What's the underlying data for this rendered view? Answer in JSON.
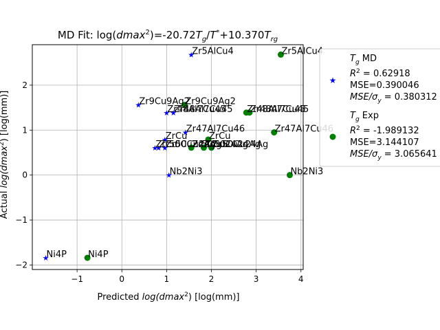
{
  "chart_data": {
    "type": "scatter",
    "title": "MD Fit: log(dmax²)=-20.72T g/T* +10.370T rg",
    "title_parts": {
      "prefix": "MD Fit: log(",
      "dmax": "dmax",
      "sq": "2",
      "mid1": ")=-20.72",
      "T1": "T",
      "g1": "g",
      "slash": "/",
      "T2": "T",
      "star": "*",
      "mid2": "+10.370",
      "T3": "T",
      "rg": "rg"
    },
    "xlabel_parts": {
      "prefix": "Predicted ",
      "italic": "log(dmax",
      "sq": "2",
      "suffix": ") [log(mm)]"
    },
    "ylabel_parts": {
      "prefix": "Actual ",
      "italic": "log(dmax",
      "sq": "2",
      "suffix": ") [log(mm)]"
    },
    "xlim": [
      -2.0,
      4.05
    ],
    "ylim": [
      -2.1,
      2.9
    ],
    "xticks": [
      -1,
      0,
      1,
      2,
      3,
      4
    ],
    "yticks": [
      -2,
      -1,
      0,
      1,
      2
    ],
    "xtick_labels": [
      "−1",
      "0",
      "1",
      "2",
      "3",
      "4"
    ],
    "ytick_labels": [
      "−2",
      "−1",
      "0",
      "1",
      "2"
    ],
    "grid": true,
    "legend_placement": "right, outside plot",
    "series": [
      {
        "name": "Tg MD",
        "legend_lines": {
          "label_T": "T",
          "label_g": "g",
          "label_rest": " MD",
          "r2_label": "R",
          "r2_sup": "2",
          "r2_value": " = 0.62918",
          "mse": "MSE=0.390046",
          "mse_sigma_label": "MSE/σ",
          "mse_sigma_sub": "y",
          "mse_sigma_value": " = 0.380312"
        },
        "color": "#0000ff",
        "marker": "star",
        "points": [
          {
            "label": "Zr5AlCu4",
            "x": 1.55,
            "y": 2.68
          },
          {
            "label": "Zr9Cu9Ag2",
            "x": 0.37,
            "y": 1.56
          },
          {
            "label": "Zr48Al7Cu45",
            "x": 1.0,
            "y": 1.39
          },
          {
            "label": "Zr48Al7Cu45",
            "x": 1.15,
            "y": 1.39
          },
          {
            "label": "Zr47Al7Cu46",
            "x": 1.42,
            "y": 0.95
          },
          {
            "label": "ZrCu",
            "x": 0.96,
            "y": 0.79
          },
          {
            "label": "ZrCu",
            "x": 0.74,
            "y": 0.61
          },
          {
            "label": "Zr50Cu24Ag",
            "x": 0.82,
            "y": 0.61
          },
          {
            "label": "Zr50Cu24Ag",
            "x": 0.96,
            "y": 0.61
          },
          {
            "label": "Nb2Ni3",
            "x": 1.05,
            "y": 0.0
          },
          {
            "label": "Ni4P",
            "x": -1.7,
            "y": -1.84
          }
        ]
      },
      {
        "name": "Tg Exp",
        "legend_lines": {
          "label_T": "T",
          "label_g": "g",
          "label_rest": " Exp",
          "r2_label": "R",
          "r2_sup": "2",
          "r2_value": " = -1.989132",
          "mse": "MSE=3.144107",
          "mse_sigma_label": "MSE/σ",
          "mse_sigma_sub": "y",
          "mse_sigma_value": " = 3.065641"
        },
        "color": "#008000",
        "marker": "circle",
        "points": [
          {
            "label": "Zr5AlCu4",
            "x": 3.55,
            "y": 2.68
          },
          {
            "label": "Zr9Cu9Ag2",
            "x": 1.4,
            "y": 1.56
          },
          {
            "label": "Zr48Al7Cu45",
            "x": 2.78,
            "y": 1.39
          },
          {
            "label": "Zr48Al7Cu45",
            "x": 2.85,
            "y": 1.39
          },
          {
            "label": "Zr47Al7Cu46",
            "x": 3.4,
            "y": 0.95
          },
          {
            "label": "ZrCu",
            "x": 1.93,
            "y": 0.79
          },
          {
            "label": "Zr50Cu24Ag",
            "x": 1.55,
            "y": 0.61
          },
          {
            "label": "Zr50Cu24Ag",
            "x": 1.83,
            "y": 0.61
          },
          {
            "label": "Zr50Cu24Ag",
            "x": 2.0,
            "y": 0.61
          },
          {
            "label": "Nb2Ni3",
            "x": 3.75,
            "y": 0.0
          },
          {
            "label": "Ni4P",
            "x": -0.77,
            "y": -1.84
          }
        ]
      }
    ]
  }
}
